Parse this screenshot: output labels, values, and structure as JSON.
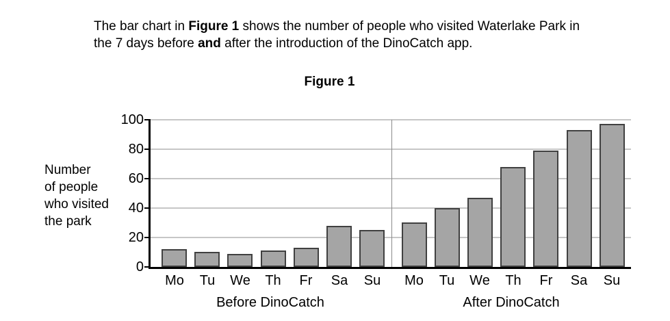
{
  "intro": {
    "line1": {
      "s1": "The bar chart in ",
      "s2": "Figure 1",
      "s3": " shows the number of people who visited Waterlake Park in"
    },
    "line2": {
      "s1": "the 7 days before ",
      "s2": "and",
      "s3": " after the introduction of the DinoCatch app."
    }
  },
  "figure_title": "Figure 1",
  "chart_data": {
    "type": "bar",
    "title": "Figure 1",
    "ylabel_lines": [
      "Number",
      "of people",
      "who visited",
      "the park"
    ],
    "ylabel": "Number of people who visited the park",
    "xlabel": "",
    "categories": [
      "Mo",
      "Tu",
      "We",
      "Th",
      "Fr",
      "Sa",
      "Su"
    ],
    "groups": [
      {
        "label": "Before DinoCatch",
        "values": [
          12,
          10,
          9,
          11,
          13,
          28,
          25
        ]
      },
      {
        "label": "After DinoCatch",
        "values": [
          30,
          40,
          47,
          68,
          79,
          93,
          97
        ]
      }
    ],
    "ylim": [
      0,
      100
    ],
    "ytick_step": 20,
    "yticks": [
      0,
      20,
      40,
      60,
      80,
      100
    ],
    "grid": true,
    "legend": "none",
    "colors": {
      "bar_fill": "#a5a5a5",
      "bar_border": "#404040",
      "gridline": "#c6c6c6",
      "axis": "#000000",
      "divider": "#8a8a8a",
      "text": "#000000"
    }
  }
}
